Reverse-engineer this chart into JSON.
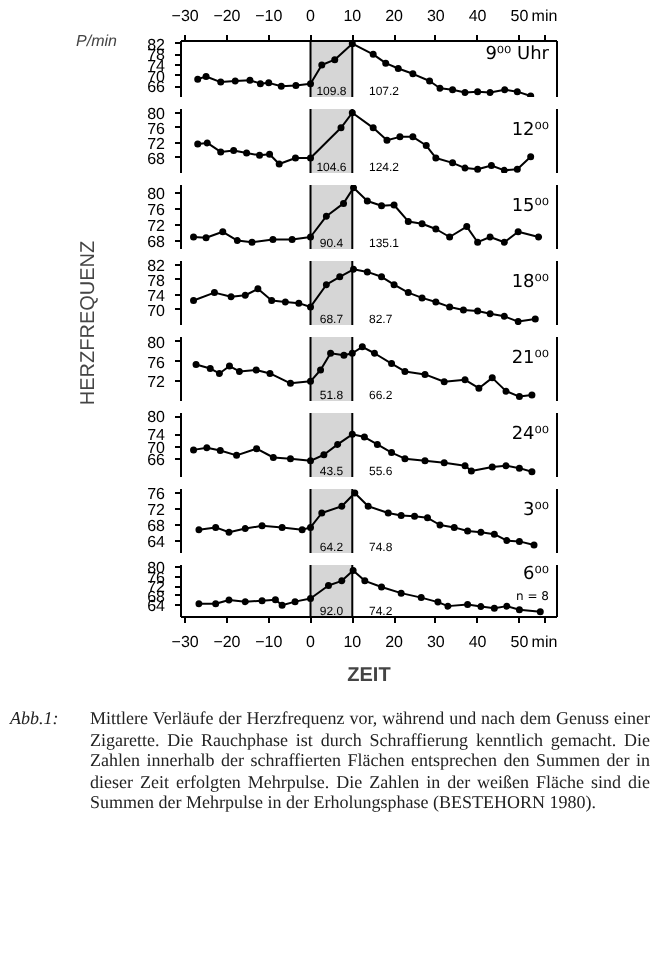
{
  "chart_data": [
    {
      "type": "line",
      "ylabel": "P/min",
      "title": "9⁰⁰ Uhr",
      "annotations": [
        "109.8",
        "107.2"
      ],
      "x": [
        -27,
        -25,
        -21.5,
        -18,
        -14.5,
        -12,
        -10,
        -7,
        -3.5,
        0,
        2.7,
        5.8,
        10,
        15,
        18,
        21,
        24.5,
        28.5,
        31,
        34,
        37,
        40,
        43,
        46.5,
        49.5,
        52.7
      ],
      "values": [
        68.7,
        69.7,
        67.6,
        68,
        68.3,
        67,
        67.3,
        66,
        66.3,
        67,
        74,
        76,
        82,
        78,
        74.7,
        72.7,
        70.7,
        68,
        65.3,
        64.7,
        63.7,
        64,
        63.7,
        64.7,
        64,
        62.4
      ],
      "color": "#000000",
      "marker": "circle",
      "xlim": [
        -31,
        59
      ],
      "ylim": [
        62,
        83
      ],
      "yticks": [
        66,
        70,
        74,
        78,
        82
      ],
      "x2lim": [
        -31,
        59
      ],
      "x2ticks": [
        -30,
        -20,
        -10,
        0,
        10,
        20,
        30,
        40,
        50,
        {
          "value": 56,
          "label": "min"
        }
      ],
      "tick_labels": "y",
      "ref_lines": [
        {
          "axis": "x",
          "value": 0
        },
        {
          "axis": "x",
          "value": 10
        }
      ],
      "bands": [
        {
          "axis": "x",
          "from": 0,
          "to": 10,
          "color": "#cccccc"
        }
      ]
    },
    {
      "type": "line",
      "title": "12⁰⁰",
      "annotations": [
        "104.6",
        "124.2"
      ],
      "x": [
        -27,
        -24.7,
        -21.5,
        -18.4,
        -15.3,
        -12.2,
        -9.8,
        -7.5,
        -3.6,
        0,
        7.3,
        10,
        15,
        18.3,
        21.4,
        24.5,
        27.7,
        30,
        34,
        37,
        40,
        43.3,
        46.4,
        49.5,
        52.7
      ],
      "values": [
        71.7,
        72,
        69.6,
        70,
        69.3,
        68.7,
        69,
        66.4,
        68,
        68,
        76,
        80,
        76,
        72.7,
        73.6,
        73.6,
        71.3,
        68,
        66.7,
        65.3,
        65,
        66,
        64.7,
        65,
        68.3
      ],
      "color": "#000000",
      "marker": "circle",
      "xlim": [
        -31,
        59
      ],
      "ylim": [
        64,
        81
      ],
      "yticks": [
        68,
        72,
        76,
        80
      ],
      "tick_labels": "y",
      "ref_lines": [
        {
          "axis": "x",
          "value": 0
        },
        {
          "axis": "x",
          "value": 10
        }
      ],
      "bands": [
        {
          "axis": "x",
          "from": 0,
          "to": 10,
          "color": "#cccccc"
        }
      ]
    },
    {
      "type": "line",
      "title": "15⁰⁰",
      "annotations": [
        "90.4",
        "135.1"
      ],
      "x": [
        -28,
        -25,
        -21,
        -17.5,
        -14,
        -9,
        -4.4,
        0,
        3.8,
        7.9,
        10.3,
        13.6,
        17,
        20,
        23.4,
        26.7,
        30,
        33.3,
        37.4,
        40,
        43,
        46.4,
        49.7,
        54.6
      ],
      "values": [
        69,
        68.8,
        70.3,
        68.1,
        67.7,
        68.4,
        68.4,
        69,
        74.2,
        77.4,
        81.3,
        78,
        76.8,
        77,
        72.9,
        72.3,
        71,
        69,
        71.6,
        67.7,
        69,
        67.7,
        70.3,
        69
      ],
      "color": "#000000",
      "marker": "circle",
      "xlim": [
        -31,
        59
      ],
      "ylim": [
        66,
        82
      ],
      "yticks": [
        68,
        72,
        76,
        80
      ],
      "tick_labels": "y",
      "ref_lines": [
        {
          "axis": "x",
          "value": 0
        },
        {
          "axis": "x",
          "value": 10
        }
      ],
      "bands": [
        {
          "axis": "x",
          "from": 0,
          "to": 10,
          "color": "#cccccc"
        }
      ]
    },
    {
      "type": "line",
      "ylabel": "HERZFREQUENZ",
      "title": "18⁰⁰",
      "annotations": [
        "68.7",
        "82.7"
      ],
      "x": [
        -28,
        -23,
        -19,
        -15.6,
        -12.6,
        -9.3,
        -6,
        -2.8,
        0,
        3.8,
        7,
        10.3,
        13.6,
        17,
        20,
        23.4,
        26.7,
        30,
        33.3,
        36.6,
        40,
        43,
        46.4,
        49.7,
        53.8
      ],
      "values": [
        72.5,
        74.6,
        73.5,
        73.9,
        75.6,
        72.5,
        72.1,
        71.8,
        70.8,
        76.7,
        78.8,
        80.8,
        80.1,
        78.8,
        76.7,
        74.6,
        73.2,
        72.1,
        70.8,
        70,
        69.7,
        69,
        68.3,
        66.9,
        67.6
      ],
      "color": "#000000",
      "marker": "circle",
      "xlim": [
        -31,
        59
      ],
      "ylim": [
        66,
        83
      ],
      "yticks": [
        70,
        74,
        78,
        82
      ],
      "tick_labels": "y",
      "ref_lines": [
        {
          "axis": "x",
          "value": 0
        },
        {
          "axis": "x",
          "value": 10
        }
      ],
      "bands": [
        {
          "axis": "x",
          "from": 0,
          "to": 10,
          "color": "#cccccc"
        }
      ]
    },
    {
      "type": "line",
      "title": "21⁰⁰",
      "annotations": [
        "51.8",
        "66.2"
      ],
      "x": [
        -27.4,
        -24,
        -21.8,
        -19.4,
        -17,
        -13,
        -9.7,
        -4.8,
        0,
        2.4,
        4.8,
        8,
        10,
        12.4,
        15.3,
        19.4,
        22.6,
        27.4,
        32,
        37,
        40.3,
        43.5,
        46.8,
        50,
        53
      ],
      "values": [
        75.4,
        74.6,
        73.6,
        75.1,
        74,
        74.3,
        73.6,
        71.6,
        72,
        74.3,
        77.7,
        77.3,
        77.7,
        79,
        77.7,
        75.6,
        74,
        73.4,
        71.9,
        72.3,
        70.6,
        72.7,
        70,
        68.9,
        69.2
      ],
      "color": "#000000",
      "marker": "circle",
      "xlim": [
        -31,
        59
      ],
      "ylim": [
        68,
        81
      ],
      "yticks": [
        72,
        76,
        80
      ],
      "tick_labels": "y",
      "ref_lines": [
        {
          "axis": "x",
          "value": 0
        },
        {
          "axis": "x",
          "value": 10
        }
      ],
      "bands": [
        {
          "axis": "x",
          "from": 0,
          "to": 10,
          "color": "#cccccc"
        }
      ]
    },
    {
      "type": "line",
      "title": "24⁰⁰",
      "annotations": [
        "43.5",
        "55.6"
      ],
      "x": [
        -28,
        -24.8,
        -21.6,
        -17.7,
        -12.9,
        -8.9,
        -4.8,
        0,
        3.2,
        6.5,
        10,
        12.9,
        16,
        19.4,
        22.6,
        27.4,
        32,
        37,
        38.5,
        43.5,
        46.8,
        50,
        53
      ],
      "values": [
        68.9,
        69.6,
        68.7,
        67.1,
        69.3,
        66.4,
        66,
        65.3,
        67.3,
        70.7,
        74,
        73.1,
        70.7,
        68,
        66,
        65.3,
        64.7,
        63.7,
        62,
        63.3,
        63.7,
        62.9,
        61.7
      ],
      "color": "#000000",
      "marker": "circle",
      "xlim": [
        -31,
        59
      ],
      "ylim": [
        60,
        81
      ],
      "yticks": [
        66,
        70,
        74,
        80
      ],
      "tick_labels": "y",
      "ref_lines": [
        {
          "axis": "x",
          "value": 0
        },
        {
          "axis": "x",
          "value": 10
        }
      ],
      "bands": [
        {
          "axis": "x",
          "from": 0,
          "to": 10,
          "color": "#cccccc"
        }
      ]
    },
    {
      "type": "line",
      "title": "3⁰⁰",
      "annotations": [
        "64.2",
        "74.8"
      ],
      "x": [
        -26.7,
        -22.7,
        -19.5,
        -15.6,
        -11.6,
        -6.8,
        -2,
        0,
        2.7,
        7.5,
        10.6,
        13.8,
        18.6,
        21.7,
        24.9,
        28,
        31,
        34.4,
        37.6,
        40.8,
        44,
        47,
        50,
        53.5
      ],
      "values": [
        66.8,
        67.4,
        66.2,
        67.1,
        67.8,
        67.4,
        66.8,
        67.4,
        71,
        72.7,
        76,
        72.7,
        71,
        70.4,
        70.2,
        69.8,
        68,
        67.4,
        66.5,
        66.2,
        65.7,
        64.1,
        63.9,
        63
      ],
      "color": "#000000",
      "marker": "circle",
      "xlim": [
        -31,
        59
      ],
      "ylim": [
        61,
        77
      ],
      "yticks": [
        64,
        68,
        72,
        76
      ],
      "tick_labels": "y",
      "ref_lines": [
        {
          "axis": "x",
          "value": 0
        },
        {
          "axis": "x",
          "value": 10
        }
      ],
      "bands": [
        {
          "axis": "x",
          "from": 0,
          "to": 10,
          "color": "#cccccc"
        }
      ]
    },
    {
      "type": "line",
      "xlabel": "ZEIT",
      "title": "6⁰⁰",
      "subtitle": "n = 8",
      "annotations": [
        "92.0",
        "74.2",
        "Abb.1:",
        "Mittlere Verläufe der Herzfrequenz vor, während und nach dem Genuss einer Zigarette. Die Rauchphase ist durch Schraffierung kenntlich gemacht. Die Zahlen innerhalb der schraffierten Flächen entsprechen den Summen der in dieser Zeit erfolgten Mehrpulse. Die Zahlen in der weißen Fläche sind die Summen der Mehrpulse in der Erholungsphase (BESTEHORN 1980)."
      ],
      "x": [
        -26.7,
        -22.7,
        -19.5,
        -15.6,
        -11.6,
        -8.4,
        -6.8,
        -3.7,
        0,
        4.3,
        7.5,
        10.2,
        13,
        17,
        21.7,
        26.5,
        30.5,
        32.9,
        37.6,
        40.8,
        44,
        47,
        50,
        55
      ],
      "values": [
        64.6,
        64.6,
        66.2,
        65.5,
        65.9,
        66.3,
        64,
        65.5,
        66.8,
        72.3,
        74.3,
        78.7,
        74.3,
        71.7,
        69.1,
        67.2,
        65.3,
        63.6,
        64.3,
        63.4,
        62.7,
        63.6,
        62.1,
        61.2
      ],
      "color": "#000000",
      "marker": "circle",
      "xlim": [
        -31,
        59
      ],
      "ylim": [
        59,
        81
      ],
      "yticks": [
        64,
        68,
        72,
        76,
        80
      ],
      "xticks": [
        -30,
        -20,
        -10,
        0,
        10,
        20,
        30,
        40,
        50,
        {
          "value": 56,
          "label": "min"
        }
      ],
      "ref_lines": [
        {
          "axis": "x",
          "value": 0
        },
        {
          "axis": "x",
          "value": 10
        }
      ],
      "bands": [
        {
          "axis": "x",
          "from": 0,
          "to": 10,
          "color": "#cccccc"
        }
      ]
    }
  ]
}
